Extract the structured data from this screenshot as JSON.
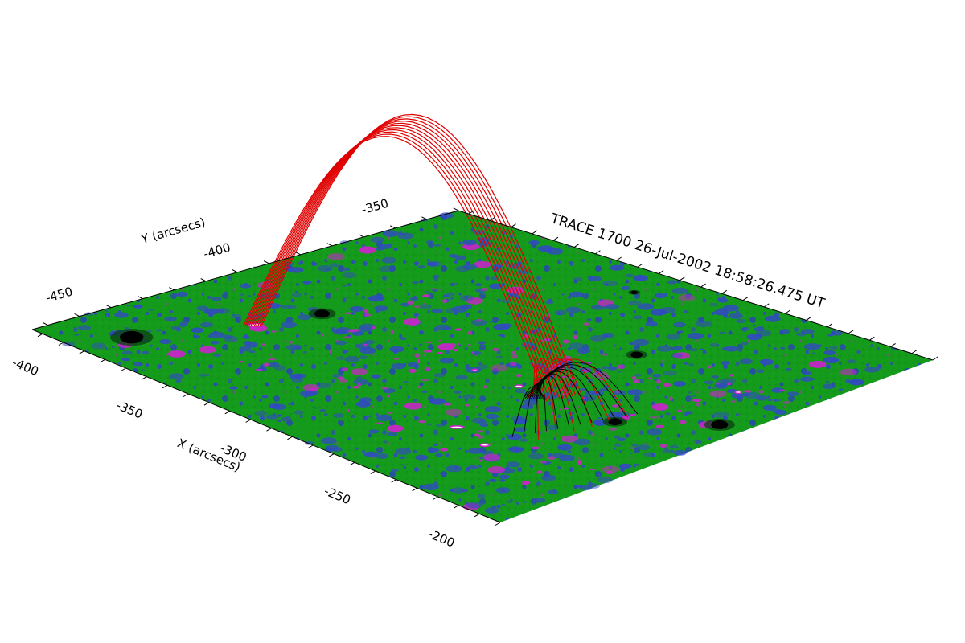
{
  "title": "TRACE 1700 26-Jul-2002 18:58:26.475 UT",
  "x_axis": {
    "label": "X (arcsecs)",
    "range": [
      -410,
      -185
    ],
    "ticks": [
      {
        "value": -400,
        "label": "-400"
      },
      {
        "value": -350,
        "label": "-350"
      },
      {
        "value": -300,
        "label": "-300"
      },
      {
        "value": -250,
        "label": "-250"
      },
      {
        "value": -200,
        "label": "-200"
      }
    ]
  },
  "y_axis": {
    "label": "Y (arcsecs)",
    "range": [
      -470,
      -335
    ],
    "ticks": [
      {
        "value": -450,
        "label": "-450"
      },
      {
        "value": -400,
        "label": "-400"
      },
      {
        "value": -350,
        "label": "-350"
      }
    ]
  },
  "colors": {
    "surface_base": "#149b1c",
    "surface_blue": "#3247c8",
    "surface_magenta": "#d21ed2",
    "surface_bright": "#ffffff",
    "sunspot": "#000000",
    "field_lines_red": "#e00000",
    "field_lines_black": "#000000"
  },
  "sunspots": [
    {
      "x": -385,
      "y": -455,
      "r": 14
    },
    {
      "x": -362,
      "y": -410,
      "r": 9
    },
    {
      "x": -262,
      "y": -377,
      "r": 7
    },
    {
      "x": -195,
      "y": -395,
      "r": 10
    },
    {
      "x": -222,
      "y": -410,
      "r": 8
    },
    {
      "x": -307,
      "y": -348,
      "r": 4
    }
  ],
  "bright_kernels": [
    {
      "x": -368,
      "y": -427,
      "w": 20,
      "h": 4
    },
    {
      "x": -255,
      "y": -438,
      "w": 18,
      "h": 3
    },
    {
      "x": -237,
      "y": -441,
      "w": 12,
      "h": 3
    },
    {
      "x": -268,
      "y": -410,
      "w": 10,
      "h": 3
    },
    {
      "x": -212,
      "y": -378,
      "w": 8,
      "h": 3
    },
    {
      "x": -289,
      "y": -410,
      "w": 8,
      "h": 2
    }
  ],
  "field_lines": {
    "red_bundle": {
      "count": 11,
      "from": [
        -368,
        -428
      ],
      "to": [
        -250,
        -408
      ],
      "height": 0.98
    },
    "red_fan": {
      "count": 6,
      "from": [
        -258,
        -414
      ],
      "to": [
        -222,
        -418
      ],
      "height": 0.2
    },
    "black_fan": {
      "count": 12,
      "from": [
        -256,
        -413
      ],
      "to": [
        -222,
        -418
      ],
      "height": 0.18
    }
  }
}
